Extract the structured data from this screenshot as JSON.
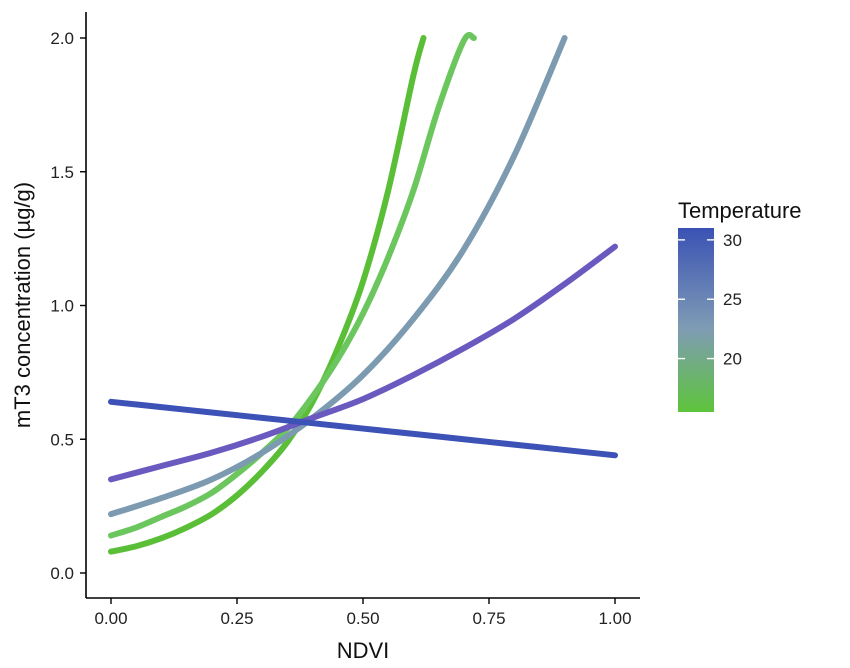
{
  "chart_data": {
    "type": "line",
    "xlabel": "NDVI",
    "ylabel": "mT3 concentration (µg/g)",
    "xlim": [
      0,
      1
    ],
    "ylim": [
      0,
      2
    ],
    "x_ticks": [
      0,
      0.25,
      0.5,
      0.75,
      1.0
    ],
    "x_tick_labels": [
      "0.00",
      "0.25",
      "0.50",
      "0.75",
      "1.00"
    ],
    "y_ticks": [
      0,
      0.5,
      1.0,
      1.5,
      2.0
    ],
    "y_tick_labels": [
      "0.0",
      "0.5",
      "1.0",
      "1.5",
      "2.0"
    ],
    "grid": false,
    "legend": {
      "title": "Temperature",
      "type": "colorbar",
      "placement": "right",
      "range": [
        15.5,
        31
      ],
      "ticks": [
        20,
        25,
        30
      ],
      "tick_labels": [
        "20",
        "25",
        "30"
      ],
      "color_low": "#5dc43a",
      "color_mid": "#7f9cb4",
      "color_high": "#3a52b4"
    },
    "series": [
      {
        "color": "#5abf36",
        "x": [
          0,
          0.05,
          0.1,
          0.15,
          0.2,
          0.25,
          0.3,
          0.35,
          0.4,
          0.45,
          0.5,
          0.55,
          0.6,
          0.62
        ],
        "y": [
          0.08,
          0.1,
          0.13,
          0.17,
          0.22,
          0.29,
          0.38,
          0.49,
          0.64,
          0.84,
          1.09,
          1.43,
          1.86,
          2.0
        ]
      },
      {
        "color": "#6cc65e",
        "x": [
          0,
          0.05,
          0.1,
          0.15,
          0.2,
          0.25,
          0.3,
          0.35,
          0.4,
          0.45,
          0.5,
          0.55,
          0.6,
          0.65,
          0.7,
          0.72
        ],
        "y": [
          0.14,
          0.17,
          0.21,
          0.25,
          0.3,
          0.37,
          0.45,
          0.54,
          0.66,
          0.8,
          0.97,
          1.18,
          1.43,
          1.74,
          1.99,
          2.0
        ]
      },
      {
        "color": "#7d9bb0",
        "x": [
          0,
          0.1,
          0.2,
          0.3,
          0.4,
          0.5,
          0.6,
          0.7,
          0.8,
          0.9
        ],
        "y": [
          0.22,
          0.28,
          0.35,
          0.45,
          0.58,
          0.74,
          0.95,
          1.21,
          1.56,
          2.0
        ]
      },
      {
        "color": "#6a5ac0",
        "x": [
          0,
          0.1,
          0.2,
          0.3,
          0.4,
          0.5,
          0.6,
          0.7,
          0.8,
          0.9,
          1.0
        ],
        "y": [
          0.35,
          0.4,
          0.45,
          0.51,
          0.58,
          0.65,
          0.74,
          0.84,
          0.95,
          1.08,
          1.22
        ]
      },
      {
        "color": "#3c52b6",
        "x": [
          0,
          0.1,
          0.2,
          0.3,
          0.4,
          0.5,
          0.6,
          0.7,
          0.8,
          0.9,
          1.0
        ],
        "y": [
          0.64,
          0.62,
          0.6,
          0.58,
          0.56,
          0.54,
          0.52,
          0.5,
          0.48,
          0.46,
          0.44
        ]
      }
    ]
  }
}
